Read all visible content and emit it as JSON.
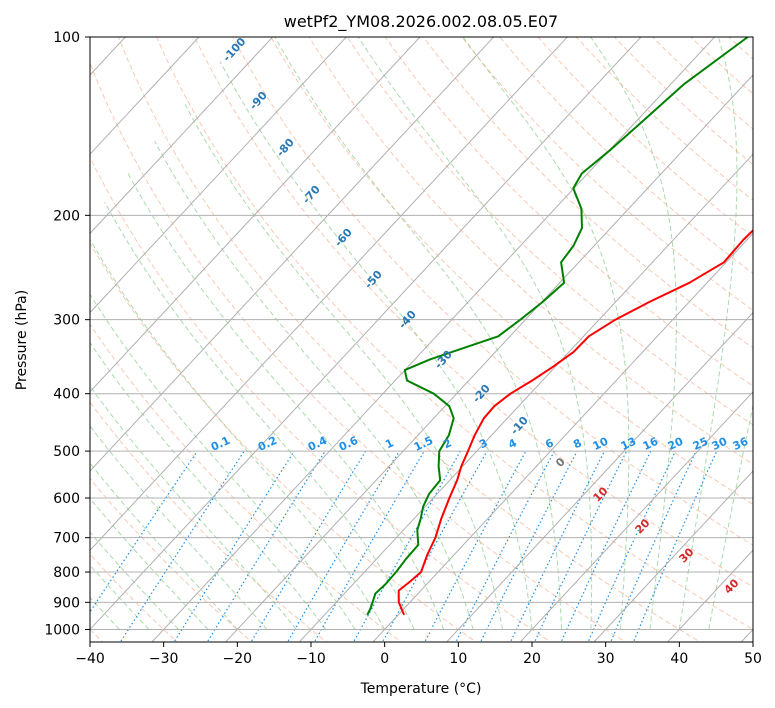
{
  "chart_data": {
    "type": "line",
    "diagram": "skew-T log-P",
    "title": "wetPf2_YM08.2026.002.08.05.E07",
    "xlabel": "Temperature (°C)",
    "ylabel": "Pressure (hPa)",
    "xlim": [
      -40,
      50
    ],
    "ylim": [
      1050,
      100
    ],
    "x_ticks": [
      -40,
      -30,
      -20,
      -10,
      0,
      10,
      20,
      30,
      40,
      50
    ],
    "x_tick_labels": [
      "−40",
      "−30",
      "−20",
      "−10",
      "0",
      "10",
      "20",
      "30",
      "40",
      "50"
    ],
    "y_ticks": [
      1000,
      900,
      800,
      700,
      600,
      500,
      400,
      300,
      200,
      100
    ],
    "y_tick_labels": [
      "1000",
      "900",
      "800",
      "700",
      "600",
      "500",
      "400",
      "300",
      "200",
      "100"
    ],
    "grid": true,
    "series": [
      {
        "name": "Temperature",
        "color": "#ff0000",
        "pressure": [
          945,
          900,
          860,
          830,
          800,
          750,
          700,
          650,
          600,
          560,
          530,
          500,
          470,
          440,
          420,
          400,
          380,
          360,
          340,
          320,
          300,
          280,
          260,
          240,
          220,
          200,
          180,
          160,
          140,
          120,
          100
        ],
        "values": [
          0.8,
          -1.5,
          -3.0,
          -2.6,
          -2.3,
          -3.6,
          -4.7,
          -6.3,
          -7.8,
          -9.0,
          -10.2,
          -11.2,
          -12.3,
          -13.2,
          -13.3,
          -12.7,
          -11.4,
          -10.3,
          -9.4,
          -9.3,
          -7.8,
          -5.4,
          -2.4,
          -0.3,
          -0.5,
          -0.2,
          0.6,
          0.4,
          0.3,
          -0.1,
          0.5
        ]
      },
      {
        "name": "Dewpoint",
        "color": "#008000",
        "pressure": [
          945,
          920,
          890,
          870,
          840,
          800,
          760,
          720,
          680,
          650,
          620,
          590,
          560,
          530,
          500,
          470,
          440,
          420,
          400,
          380,
          365,
          350,
          320,
          300,
          280,
          260,
          240,
          225,
          210,
          195,
          180,
          170,
          155,
          140,
          120,
          100
        ],
        "values": [
          -4.2,
          -4.6,
          -5.3,
          -5.8,
          -5.6,
          -5.7,
          -6.0,
          -6.1,
          -8.1,
          -9.1,
          -10.3,
          -11.1,
          -11.3,
          -13.3,
          -15.1,
          -15.8,
          -17.3,
          -19.4,
          -23.1,
          -28.4,
          -30.0,
          -27.9,
          -21.6,
          -20.7,
          -19.9,
          -19.4,
          -22.4,
          -22.8,
          -23.9,
          -26.4,
          -30.1,
          -30.8,
          -29.9,
          -29.2,
          -28.2,
          -25.5
        ]
      }
    ],
    "dry_adiabat_labels": [
      "-100",
      "-90",
      "-80",
      "-70",
      "-60",
      "-50",
      "-40",
      "-30",
      "-20",
      "-10"
    ],
    "moist_adiabat_labels": [
      "0",
      "10",
      "20",
      "30",
      "40"
    ],
    "mixing_ratio_labels": [
      "0.1",
      "0.2",
      "0.4",
      "0.6",
      "1",
      "1.5",
      "2",
      "3",
      "4",
      "6",
      "8",
      "10",
      "13",
      "16",
      "20",
      "25",
      "30",
      "36"
    ],
    "colors": {
      "isotherm": "#b0b0b0",
      "isobar": "#b0b0b0",
      "dry_adiabat": "#f4a582",
      "moist_adiabat": "#8fce8f",
      "mixing_ratio": "#1f8fe6",
      "dry_label": "#2878b5",
      "moist_label": "#d62728",
      "frame": "#000000"
    }
  }
}
